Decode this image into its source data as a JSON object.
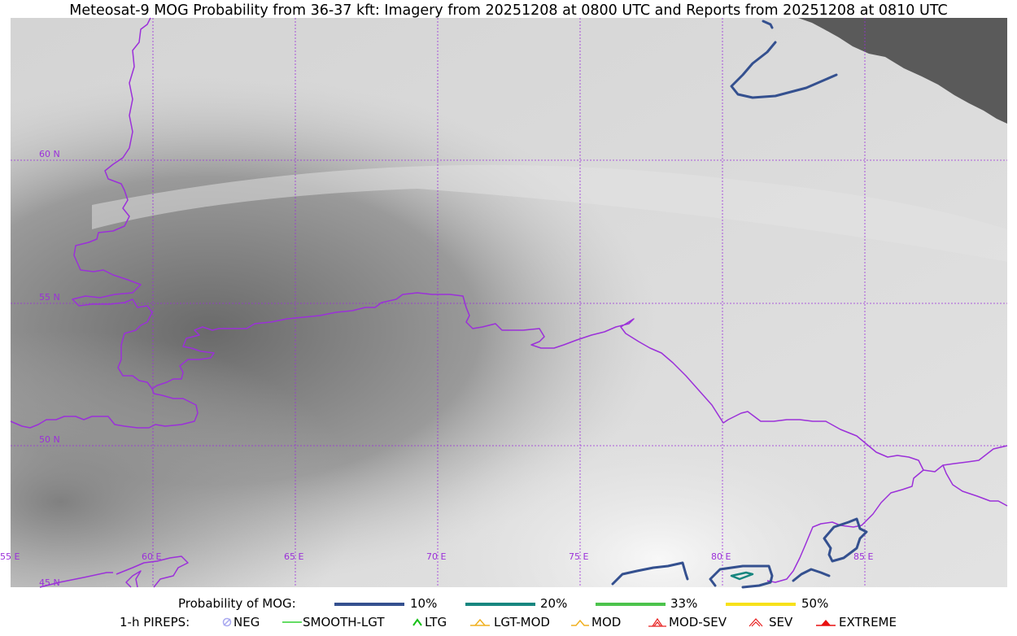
{
  "title": "Meteosat-9 MOG Probability from 36-37 kft: Imagery from 20251208 at 0800 UTC and Reports from 20251208 at 0810 UTC",
  "map": {
    "lat_labels": [
      {
        "value": 60,
        "text": "60 N"
      },
      {
        "value": 55,
        "text": "55 N"
      },
      {
        "value": 50,
        "text": "50 N"
      },
      {
        "value": 45,
        "text": "45 N"
      }
    ],
    "lon_labels": [
      {
        "value": 55,
        "text": "55 E"
      },
      {
        "value": 60,
        "text": "60 E"
      },
      {
        "value": 65,
        "text": "65 E"
      },
      {
        "value": 70,
        "text": "70 E"
      },
      {
        "value": 75,
        "text": "75 E"
      },
      {
        "value": 80,
        "text": "80 E"
      },
      {
        "value": 85,
        "text": "85 E"
      }
    ],
    "colors": {
      "grid": "#9b30d9",
      "border": "#9b30d9",
      "no_data": "#5a5a5a"
    }
  },
  "legend": {
    "probability_label": "Probability of MOG:",
    "levels": [
      {
        "label": "10%",
        "color": "#34508f"
      },
      {
        "label": "20%",
        "color": "#17867f"
      },
      {
        "label": "33%",
        "color": "#4cc34c"
      },
      {
        "label": "50%",
        "color": "#f7e11a"
      }
    ],
    "pireps_label": "1-h PIREPS:",
    "pireps": [
      {
        "label": "NEG",
        "icon": "neg-circle-icon",
        "color": "#a9a9f0"
      },
      {
        "label": "SMOOTH-LGT",
        "icon": "dash-icon",
        "color": "#30d030"
      },
      {
        "label": "LTG",
        "icon": "caret-icon",
        "color": "#18c018"
      },
      {
        "label": "LGT-MOD",
        "icon": "caret-bar-icon",
        "color": "#f0b020"
      },
      {
        "label": "MOD",
        "icon": "caret-icon",
        "color": "#f0b020"
      },
      {
        "label": "MOD-SEV",
        "icon": "double-caret-bar-icon",
        "color": "#e82020"
      },
      {
        "label": "SEV",
        "icon": "double-caret-icon",
        "color": "#e82020"
      },
      {
        "label": "EXTREME",
        "icon": "filled-caret-icon",
        "color": "#e81010"
      }
    ]
  }
}
